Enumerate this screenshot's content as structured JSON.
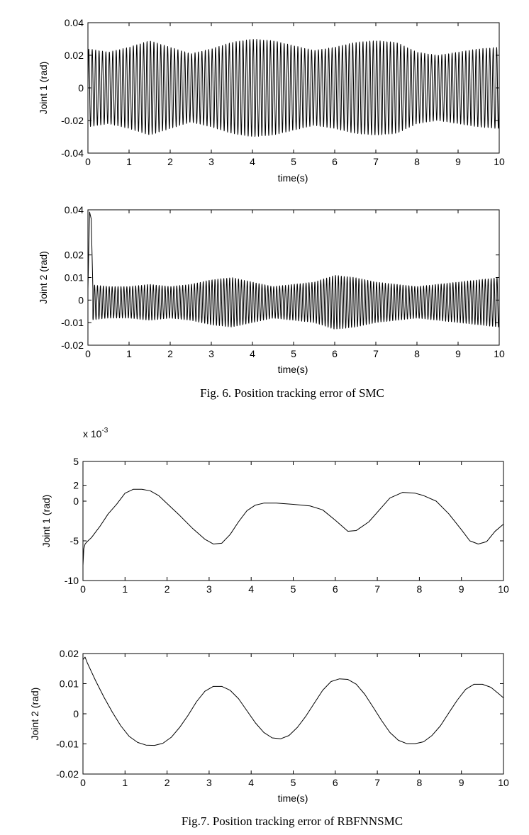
{
  "figures": [
    {
      "caption": "Fig. 6.  Position tracking error of SMC"
    },
    {
      "caption": "Fig.7.  Position tracking error of RBFNNSMC"
    }
  ],
  "chart_data": [
    {
      "type": "line",
      "title": "",
      "xlabel": "time(s)",
      "ylabel": "Joint 1 (rad)",
      "xlim": [
        0,
        10
      ],
      "ylim": [
        -0.04,
        0.04
      ],
      "xticks": [
        0,
        1,
        2,
        3,
        4,
        5,
        6,
        7,
        8,
        9,
        10
      ],
      "yticks": [
        -0.04,
        -0.02,
        0,
        0.02,
        0.04
      ],
      "ytick_labels": [
        "-0.04",
        "-0.02",
        "0",
        "0.02",
        "0.04"
      ],
      "grid": false,
      "signal": {
        "kind": "oscillation",
        "frequency_hz": 12,
        "offset": 0,
        "envelope_t": [
          0,
          0.5,
          1,
          1.5,
          2,
          2.5,
          3,
          3.5,
          4,
          4.5,
          5,
          5.5,
          6,
          6.5,
          7,
          7.5,
          8,
          8.5,
          9,
          9.5,
          10
        ],
        "envelope_amp": [
          0.024,
          0.022,
          0.025,
          0.029,
          0.025,
          0.021,
          0.024,
          0.028,
          0.03,
          0.029,
          0.026,
          0.023,
          0.025,
          0.028,
          0.029,
          0.028,
          0.022,
          0.02,
          0.022,
          0.024,
          0.025
        ]
      }
    },
    {
      "type": "line",
      "title": "",
      "xlabel": "time(s)",
      "ylabel": "Joint 2 (rad)",
      "xlim": [
        0,
        10
      ],
      "ylim": [
        -0.02,
        0.04
      ],
      "xticks": [
        0,
        1,
        2,
        3,
        4,
        5,
        6,
        7,
        8,
        9,
        10
      ],
      "yticks": [
        -0.02,
        -0.01,
        0,
        0.01,
        0.02,
        0.04
      ],
      "ytick_labels": [
        "-0.02",
        "-0.01",
        "0",
        "0.01",
        "0.02",
        "0.04"
      ],
      "grid": false,
      "initial_spike": {
        "x": [
          0,
          0.04,
          0.08,
          0.12
        ],
        "y": [
          0.005,
          0.039,
          0.036,
          0.005
        ]
      },
      "signal": {
        "kind": "oscillation",
        "frequency_hz": 14,
        "offset": -0.001,
        "envelope_t": [
          0,
          0.5,
          1,
          1.5,
          2,
          2.5,
          3,
          3.5,
          4,
          4.5,
          5,
          5.5,
          6,
          6.5,
          7,
          7.5,
          8,
          8.5,
          9,
          9.5,
          10
        ],
        "envelope_amp": [
          0.008,
          0.007,
          0.007,
          0.008,
          0.007,
          0.008,
          0.01,
          0.011,
          0.009,
          0.007,
          0.008,
          0.009,
          0.012,
          0.011,
          0.009,
          0.008,
          0.007,
          0.008,
          0.009,
          0.01,
          0.011
        ]
      }
    },
    {
      "type": "line",
      "title": "",
      "xlabel": "",
      "ylabel": "Joint 1  (rad)",
      "y_exponent": "x 10",
      "y_exponent_power": "-3",
      "xlim": [
        0,
        10
      ],
      "ylim": [
        -10,
        5
      ],
      "xticks": [
        0,
        1,
        2,
        3,
        4,
        5,
        6,
        7,
        8,
        9,
        10
      ],
      "yticks": [
        -10,
        -5,
        0,
        2,
        5
      ],
      "ytick_labels": [
        "-10",
        "-5",
        "0",
        "2",
        "5"
      ],
      "grid": false,
      "x": [
        0,
        0.02,
        0.05,
        0.1,
        0.2,
        0.4,
        0.6,
        0.8,
        1.0,
        1.2,
        1.4,
        1.6,
        1.8,
        2.0,
        2.3,
        2.6,
        2.9,
        3.1,
        3.3,
        3.5,
        3.7,
        3.9,
        4.1,
        4.3,
        4.6,
        5.0,
        5.4,
        5.7,
        6.0,
        6.3,
        6.5,
        6.8,
        7.1,
        7.3,
        7.6,
        7.9,
        8.1,
        8.4,
        8.7,
        9.0,
        9.2,
        9.4,
        9.6,
        9.8,
        10.0
      ],
      "y": [
        -8.1,
        -6.0,
        -5.4,
        -5.1,
        -4.6,
        -3.2,
        -1.6,
        -0.4,
        1.0,
        1.5,
        1.5,
        1.3,
        0.7,
        -0.3,
        -1.8,
        -3.4,
        -4.8,
        -5.4,
        -5.3,
        -4.2,
        -2.6,
        -1.2,
        -0.5,
        -0.25,
        -0.25,
        -0.4,
        -0.6,
        -1.1,
        -2.4,
        -3.8,
        -3.7,
        -2.6,
        -0.8,
        0.4,
        1.1,
        1.0,
        0.7,
        0.0,
        -1.6,
        -3.6,
        -5.0,
        -5.4,
        -5.1,
        -3.8,
        -2.9
      ]
    },
    {
      "type": "line",
      "title": "",
      "xlabel": "time(s)",
      "ylabel": "Joint 2  (rad)",
      "xlim": [
        0,
        10
      ],
      "ylim": [
        -0.02,
        0.02
      ],
      "xticks": [
        0,
        1,
        2,
        3,
        4,
        5,
        6,
        7,
        8,
        9,
        10
      ],
      "yticks": [
        -0.02,
        -0.01,
        0,
        0.01,
        0.02
      ],
      "ytick_labels": [
        "-0.02",
        "-0.01",
        "0",
        "0.01",
        "0.02"
      ],
      "grid": false,
      "x": [
        0,
        0.05,
        0.1,
        0.3,
        0.5,
        0.7,
        0.9,
        1.1,
        1.3,
        1.5,
        1.7,
        1.9,
        2.1,
        2.3,
        2.5,
        2.7,
        2.9,
        3.1,
        3.3,
        3.5,
        3.7,
        3.9,
        4.1,
        4.3,
        4.5,
        4.7,
        4.9,
        5.1,
        5.3,
        5.5,
        5.7,
        5.9,
        6.1,
        6.3,
        6.5,
        6.7,
        6.9,
        7.1,
        7.3,
        7.5,
        7.7,
        7.9,
        8.1,
        8.3,
        8.5,
        8.7,
        8.9,
        9.1,
        9.3,
        9.5,
        9.7,
        9.9,
        10.0
      ],
      "y": [
        0.018,
        0.0188,
        0.017,
        0.011,
        0.0055,
        0.0005,
        -0.004,
        -0.0075,
        -0.0095,
        -0.0104,
        -0.0105,
        -0.0098,
        -0.0078,
        -0.0045,
        -0.0005,
        0.004,
        0.0075,
        0.0091,
        0.0091,
        0.0078,
        0.005,
        0.001,
        -0.003,
        -0.0062,
        -0.008,
        -0.0083,
        -0.0072,
        -0.0045,
        -0.0008,
        0.0035,
        0.0078,
        0.0107,
        0.0116,
        0.0114,
        0.0098,
        0.0065,
        0.0022,
        -0.0022,
        -0.0062,
        -0.0088,
        -0.0099,
        -0.0099,
        -0.0093,
        -0.0072,
        -0.004,
        0.0003,
        0.0045,
        0.0081,
        0.0098,
        0.0098,
        0.0088,
        0.0065,
        0.0053
      ]
    }
  ]
}
